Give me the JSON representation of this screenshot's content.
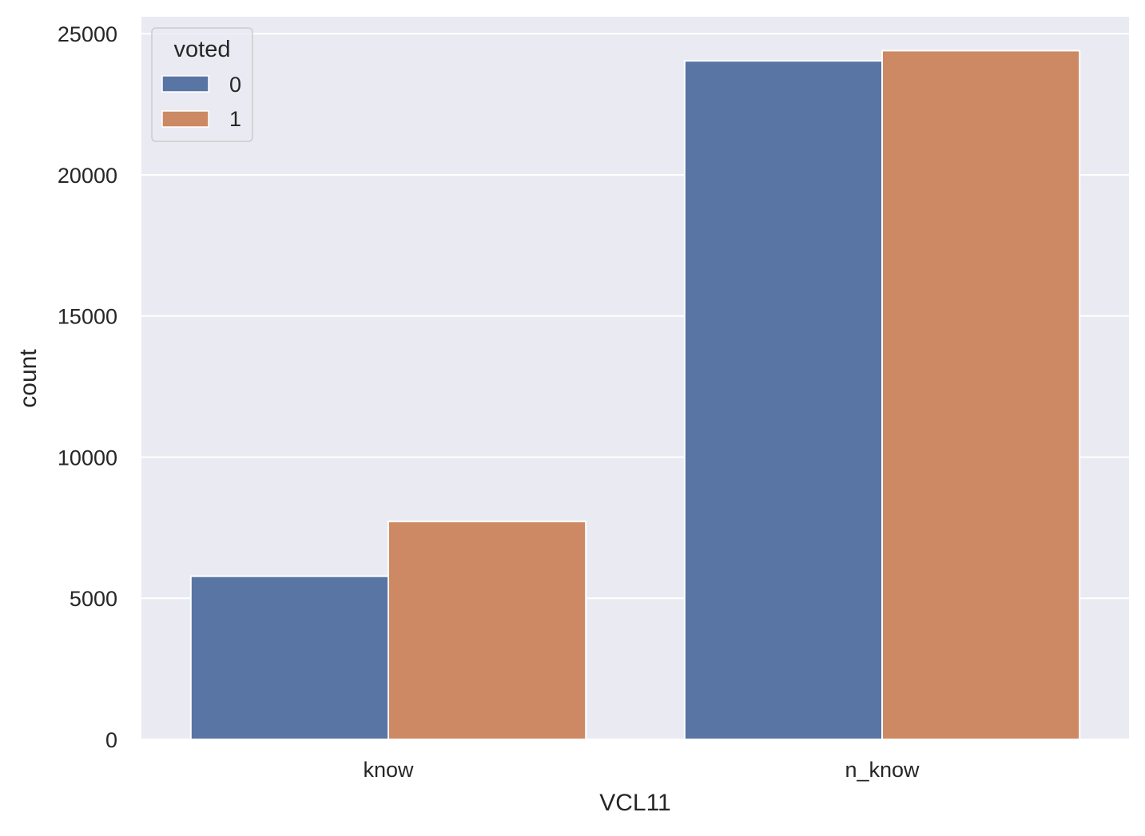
{
  "chart_data": {
    "type": "bar",
    "xlabel": "VCL11",
    "ylabel": "count",
    "categories": [
      "know",
      "n_know"
    ],
    "series": [
      {
        "name": "0",
        "values": [
          5780,
          24040
        ],
        "color": "#5875a4"
      },
      {
        "name": "1",
        "values": [
          7720,
          24400
        ],
        "color": "#cc8963"
      }
    ],
    "ylim": [
      0,
      25600
    ],
    "yticks": [
      0,
      5000,
      10000,
      15000,
      20000,
      25000
    ],
    "grid": true,
    "background_color": "#eaeaf2",
    "grid_color": "#ffffff",
    "legend": {
      "title": "voted",
      "placement": "top-left",
      "entries": [
        "0",
        "1"
      ]
    }
  }
}
